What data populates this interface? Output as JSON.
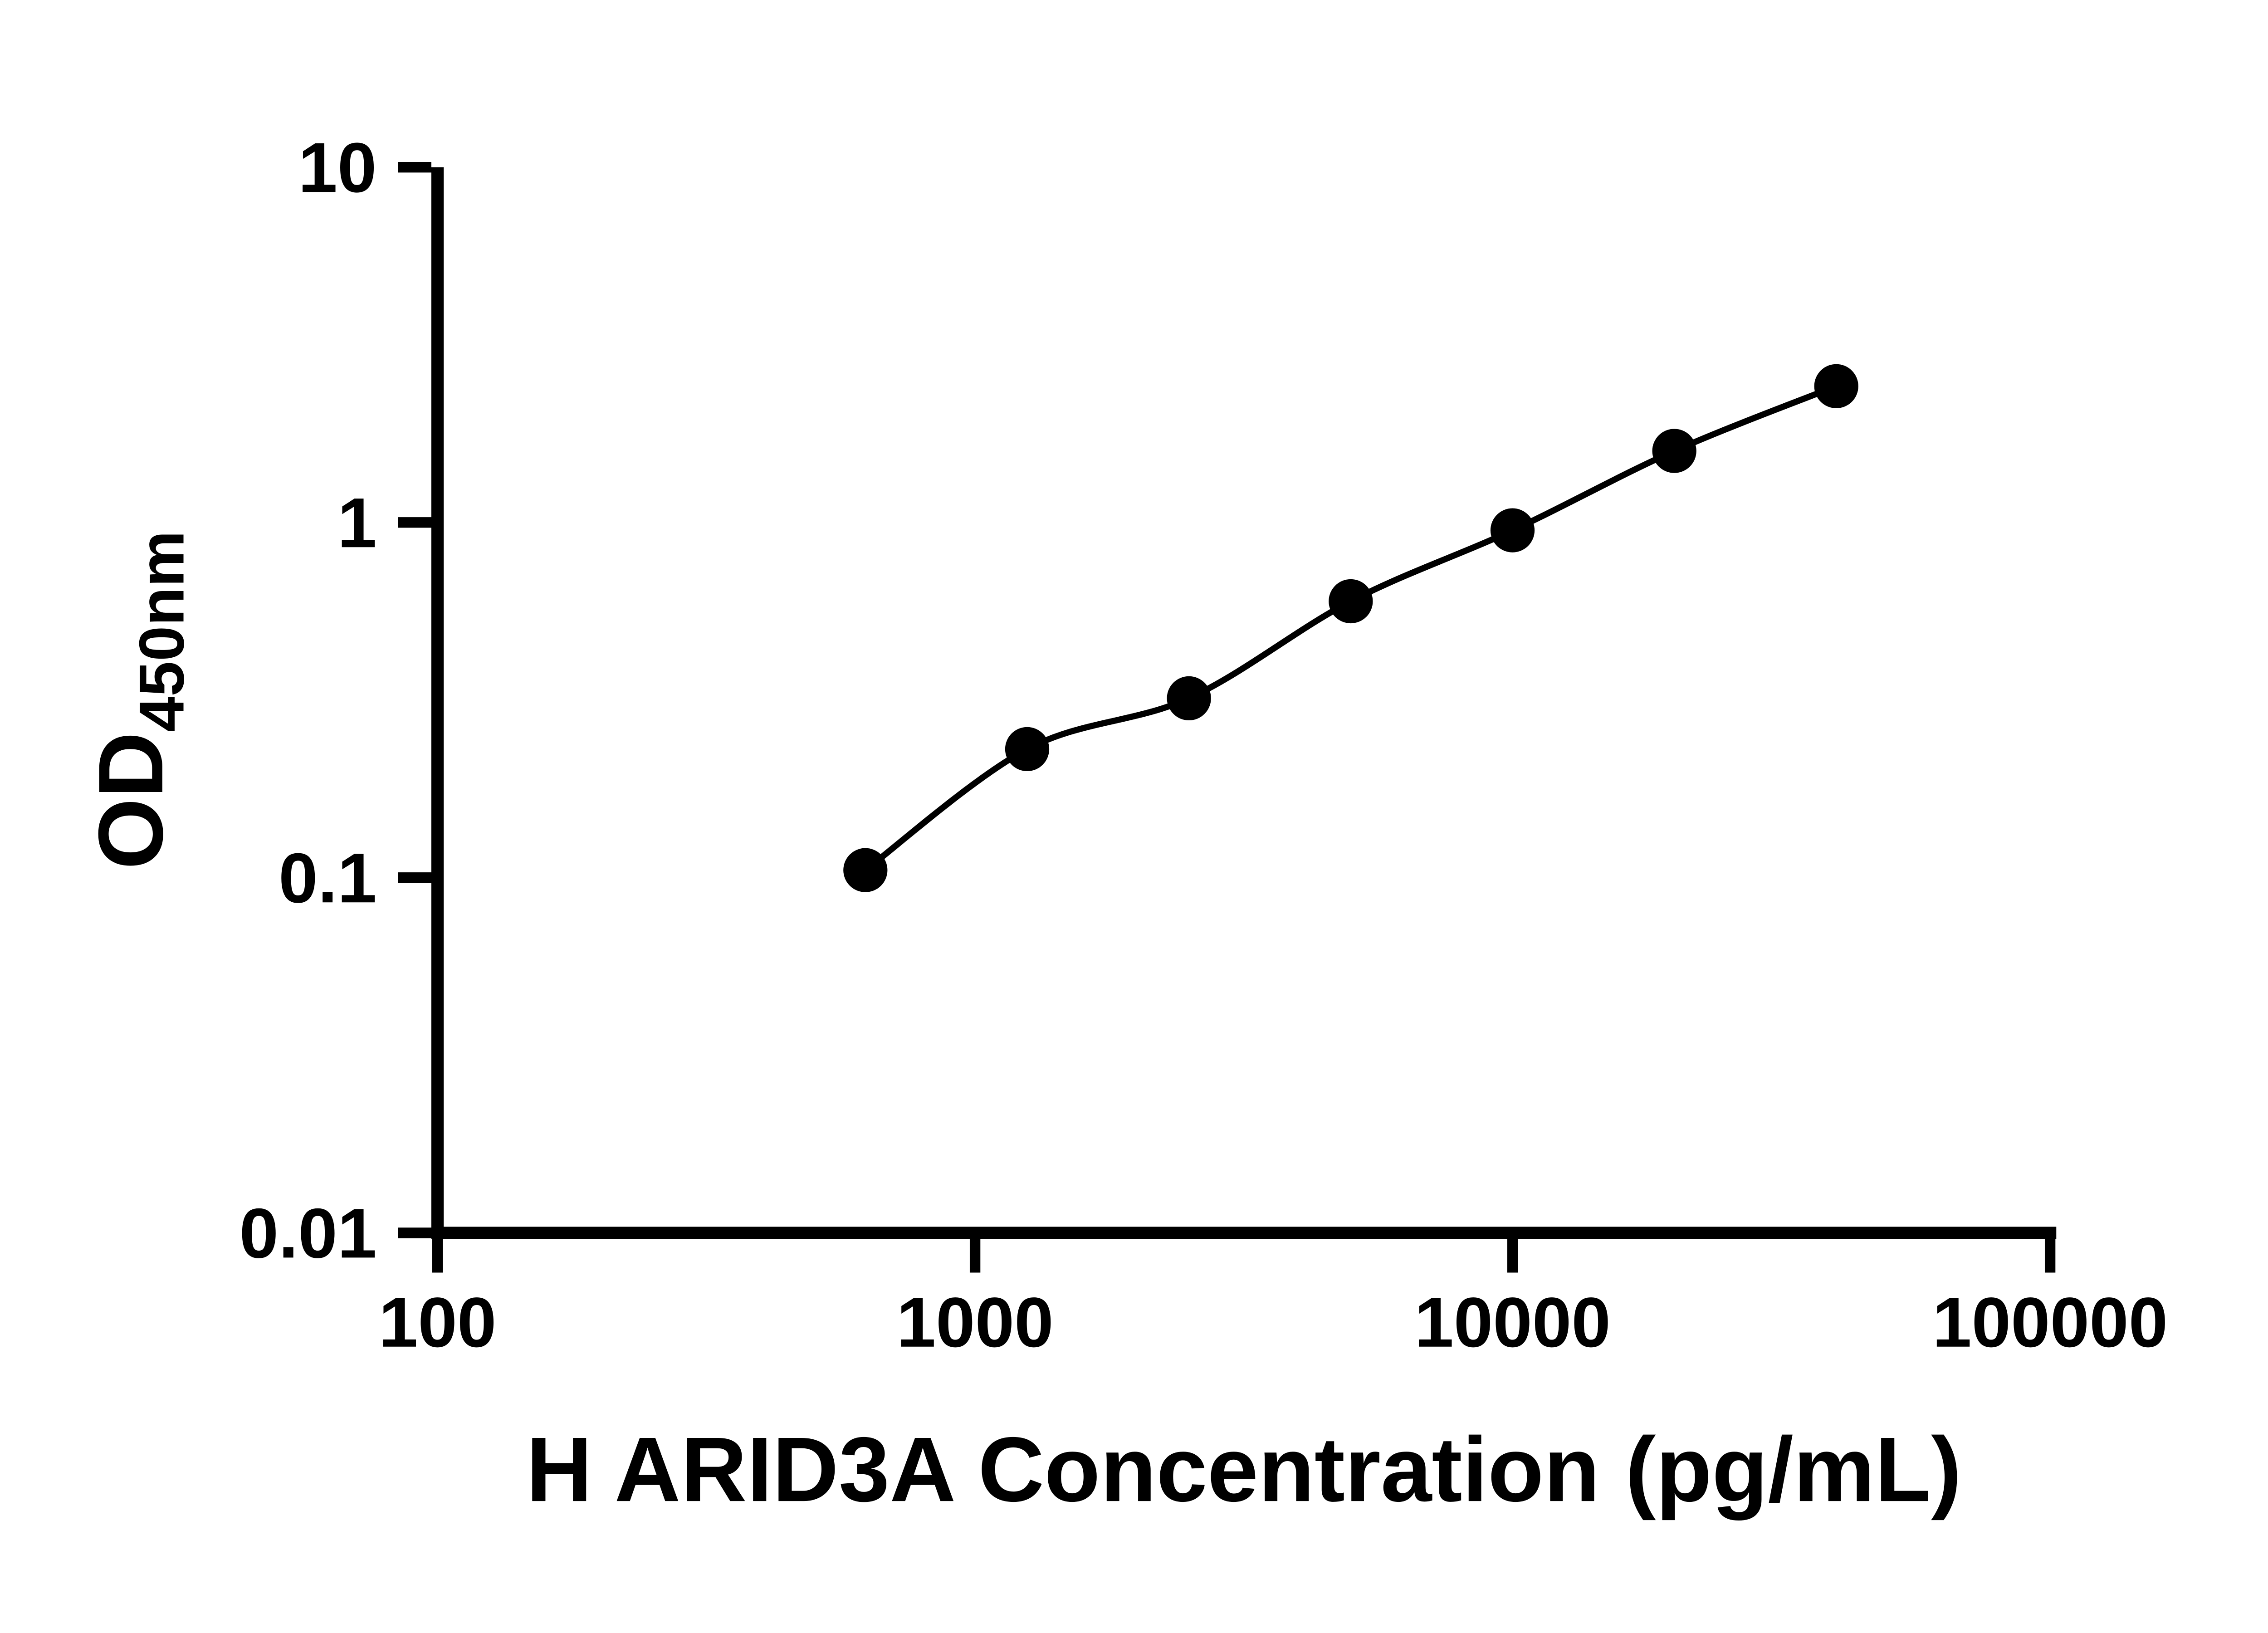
{
  "chart_data": {
    "type": "scatter",
    "subtype": "standard-curve-with-fit-line",
    "title": "",
    "xlabel": "H ARID3A Concentration (pg/mL)",
    "ylabel_main": "OD",
    "ylabel_sub": "450nm",
    "x_scale": "log10",
    "y_scale": "log10",
    "xlim": [
      100,
      100000
    ],
    "ylim": [
      0.01,
      10
    ],
    "grid": false,
    "legend": "none",
    "x_ticks": [
      {
        "value": 100,
        "label": "100"
      },
      {
        "value": 1000,
        "label": "1000"
      },
      {
        "value": 10000,
        "label": "10000"
      },
      {
        "value": 100000,
        "label": "100000"
      }
    ],
    "y_ticks": [
      {
        "value": 10,
        "label": "10"
      },
      {
        "value": 1,
        "label": "1"
      },
      {
        "value": 0.1,
        "label": "0.1"
      },
      {
        "value": 0.01,
        "label": "0.01"
      }
    ],
    "points": [
      {
        "x": 625,
        "y": 0.105
      },
      {
        "x": 1250,
        "y": 0.23
      },
      {
        "x": 2500,
        "y": 0.32
      },
      {
        "x": 5000,
        "y": 0.6
      },
      {
        "x": 10000,
        "y": 0.95
      },
      {
        "x": 20000,
        "y": 1.59
      },
      {
        "x": 40000,
        "y": 2.42
      }
    ],
    "colors": {
      "axis": "#000000",
      "marker": "#000000",
      "line": "#000000",
      "background": "#ffffff"
    }
  }
}
